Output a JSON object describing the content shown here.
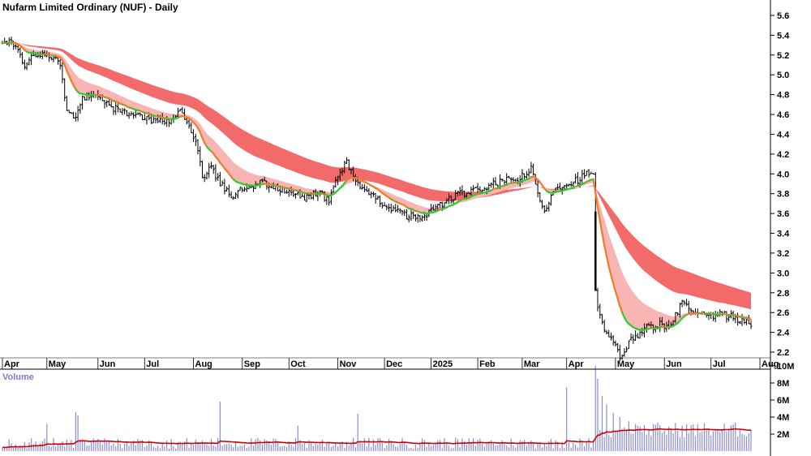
{
  "title": "Nufarm Limited Ordinary (NUF) - Daily",
  "volume_label": "Volume",
  "colors": {
    "long_ribbon": "#f26a6a",
    "short_ribbon": "#f9b4b4",
    "ma_up": "#2ecc2e",
    "ma_down": "#f07b2a",
    "candle": "#000000",
    "volume_bar": "#8c8cd6",
    "volume_ma": "#cc0000",
    "grid": "#000000"
  },
  "chart_data": [
    {
      "type": "candlestick",
      "name": "price",
      "y_ticks": [
        "5.6",
        "5.4",
        "5.2",
        "5.0",
        "4.8",
        "4.6",
        "4.4",
        "4.2",
        "4.0",
        "3.8",
        "3.6",
        "3.4",
        "3.2",
        "3.0",
        "2.8",
        "2.6",
        "2.4",
        "2.2"
      ],
      "ylim": [
        2.0,
        5.75
      ],
      "x_labels": [
        "Apr",
        "May",
        "Jun",
        "Jul",
        "Aug",
        "Sep",
        "Oct",
        "Nov",
        "Dec",
        "2025",
        "Feb",
        "Mar",
        "Apr",
        "May",
        "Jun",
        "Jul",
        "Aug"
      ],
      "x_label_days": [
        0,
        20,
        43,
        64,
        86,
        108,
        129,
        151,
        172,
        193,
        214,
        234,
        254,
        276,
        298,
        319,
        341
      ],
      "close_anchors": [
        [
          0,
          5.35
        ],
        [
          6,
          5.3
        ],
        [
          10,
          5.05
        ],
        [
          14,
          5.22
        ],
        [
          22,
          5.18
        ],
        [
          26,
          5.1
        ],
        [
          29,
          4.65
        ],
        [
          32,
          4.55
        ],
        [
          36,
          4.75
        ],
        [
          41,
          4.8
        ],
        [
          47,
          4.7
        ],
        [
          54,
          4.62
        ],
        [
          62,
          4.58
        ],
        [
          70,
          4.52
        ],
        [
          76,
          4.55
        ],
        [
          80,
          4.68
        ],
        [
          84,
          4.45
        ],
        [
          87,
          4.35
        ],
        [
          90,
          3.98
        ],
        [
          94,
          4.05
        ],
        [
          98,
          3.9
        ],
        [
          103,
          3.78
        ],
        [
          108,
          3.85
        ],
        [
          116,
          3.92
        ],
        [
          124,
          3.85
        ],
        [
          130,
          3.8
        ],
        [
          136,
          3.76
        ],
        [
          142,
          3.82
        ],
        [
          147,
          3.72
        ],
        [
          150,
          3.95
        ],
        [
          155,
          4.12
        ],
        [
          160,
          3.9
        ],
        [
          164,
          3.8
        ],
        [
          170,
          3.72
        ],
        [
          176,
          3.64
        ],
        [
          182,
          3.58
        ],
        [
          188,
          3.55
        ],
        [
          192,
          3.62
        ],
        [
          198,
          3.7
        ],
        [
          206,
          3.8
        ],
        [
          212,
          3.82
        ],
        [
          218,
          3.87
        ],
        [
          224,
          3.92
        ],
        [
          232,
          3.95
        ],
        [
          236,
          4.0
        ],
        [
          238,
          4.05
        ],
        [
          241,
          3.8
        ],
        [
          244,
          3.6
        ],
        [
          248,
          3.85
        ],
        [
          252,
          3.88
        ],
        [
          256,
          3.92
        ],
        [
          260,
          3.95
        ],
        [
          263,
          4.0
        ],
        [
          266,
          3.98
        ],
        [
          267,
          2.85
        ],
        [
          268,
          2.62
        ],
        [
          271,
          2.42
        ],
        [
          276,
          2.25
        ],
        [
          278,
          2.15
        ],
        [
          284,
          2.35
        ],
        [
          290,
          2.45
        ],
        [
          296,
          2.48
        ],
        [
          300,
          2.42
        ],
        [
          304,
          2.62
        ],
        [
          306,
          2.7
        ],
        [
          312,
          2.58
        ],
        [
          318,
          2.55
        ],
        [
          322,
          2.58
        ],
        [
          330,
          2.55
        ],
        [
          336,
          2.48
        ]
      ],
      "annotation_extremes": {
        "high": 5.55,
        "low": 2.1
      }
    },
    {
      "type": "bar",
      "name": "volume",
      "y_ticks": [
        "10M",
        "8M",
        "6M",
        "4M",
        "2M"
      ],
      "ylim": [
        0,
        11
      ],
      "spikes": [
        [
          20,
          3.2
        ],
        [
          33,
          4.6
        ],
        [
          34,
          4.2
        ],
        [
          98,
          5.8
        ],
        [
          133,
          3.0
        ],
        [
          160,
          4.4
        ],
        [
          254,
          7.5
        ],
        [
          267,
          10.0
        ],
        [
          268,
          8.5
        ],
        [
          270,
          6.5
        ],
        [
          272,
          5.5
        ],
        [
          275,
          4.5
        ],
        [
          278,
          4.0
        ],
        [
          282,
          3.5
        ],
        [
          286,
          3.0
        ]
      ]
    }
  ]
}
